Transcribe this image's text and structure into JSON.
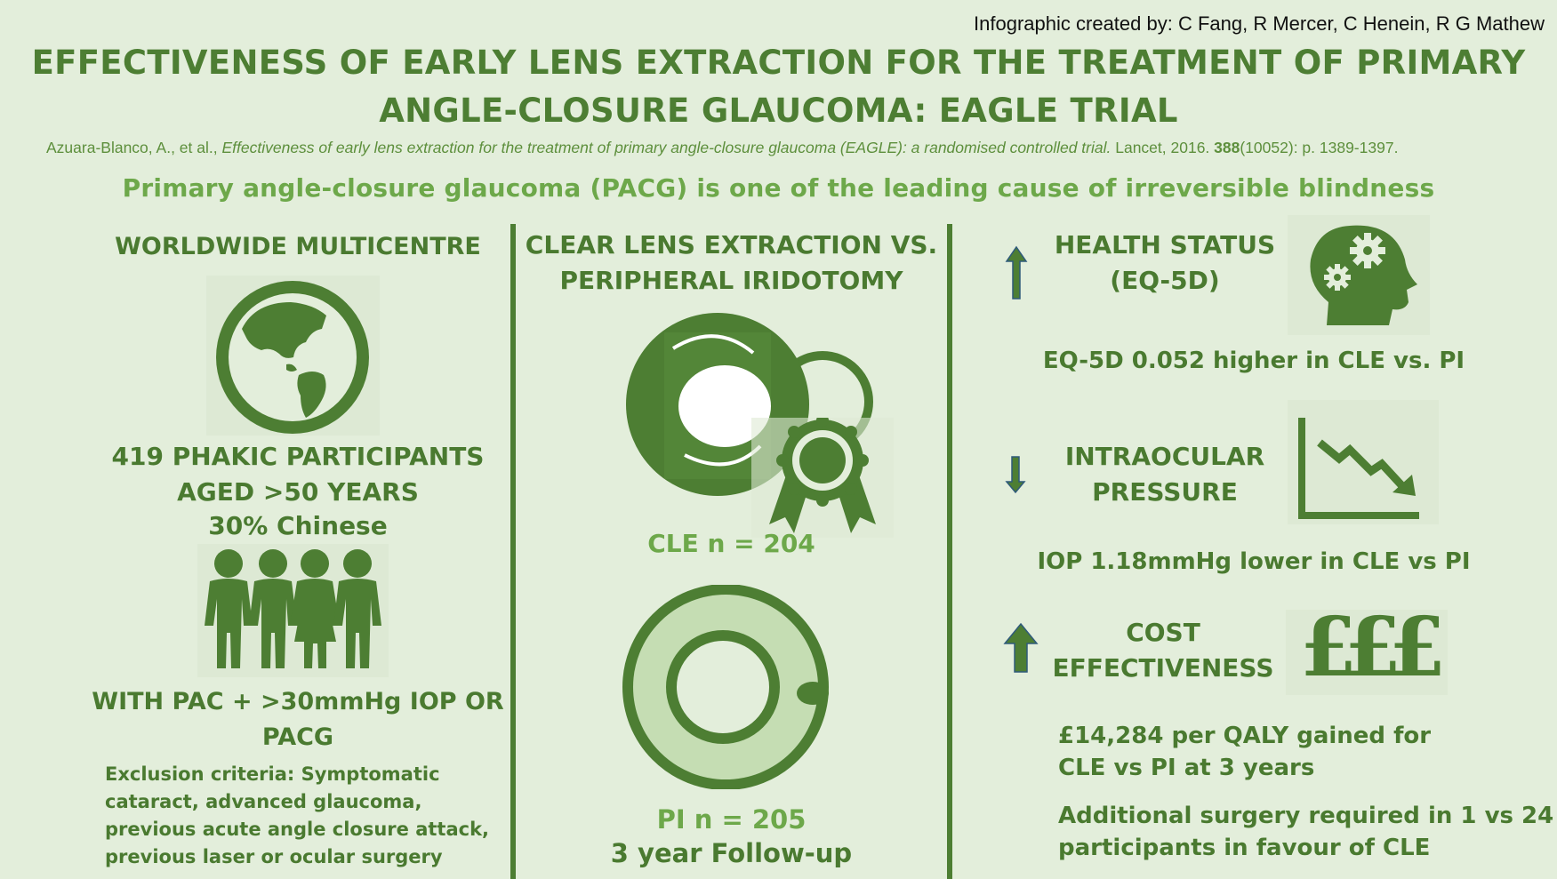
{
  "credit": "Infographic created by: C Fang, R Mercer, C Henein, R G Mathew",
  "title_line1": "EFFECTIVENESS OF EARLY LENS EXTRACTION FOR THE TREATMENT OF PRIMARY",
  "title_line2": "ANGLE-CLOSURE GLAUCOMA: EAGLE TRIAL",
  "citation": {
    "authors": "Azuara-Blanco, A., et al., ",
    "article": "Effectiveness of early lens extraction for the treatment of primary angle-closure glaucoma (EAGLE): a randomised controlled trial.",
    "journal": " Lancet, 2016. ",
    "volume": "388",
    "pages": "(10052): p. 1389-1397."
  },
  "subtitle": "Primary angle-closure glaucoma (PACG) is one of the leading cause of irreversible blindness",
  "left": {
    "heading": "WORLDWIDE MULTICENTRE",
    "icon_globe": "globe-icon",
    "participants_line1": "419 PHAKIC PARTICIPANTS",
    "participants_line2": "AGED >50 YEARS",
    "participants_line3": "30% Chinese",
    "icon_people": "people-icon",
    "criteria_line1": "WITH PAC + >30mmHg IOP OR",
    "criteria_line2": "PACG",
    "exclusion_line1": "Exclusion criteria: Symptomatic",
    "exclusion_line2": "cataract, advanced glaucoma,",
    "exclusion_line3": "previous acute angle closure attack,",
    "exclusion_line4": "previous laser or ocular surgery"
  },
  "middle": {
    "heading_line1": "CLEAR LENS EXTRACTION VS.",
    "heading_line2": "PERIPHERAL IRIDOTOMY",
    "icon_lens": "intraocular-lens-icon",
    "icon_award": "award-ribbon-icon",
    "cle_label": "CLE n = 204",
    "icon_pi": "iridotomy-eye-icon",
    "pi_label": "PI n = 205",
    "followup": "3 year Follow-up"
  },
  "right": {
    "health_heading_line1": "HEALTH STATUS",
    "health_heading_line2": "(EQ-5D)",
    "health_arrow": "up-arrow-icon",
    "health_icon": "head-gears-icon",
    "health_result": "EQ-5D 0.052 higher in CLE vs. PI",
    "iop_heading_line1": "INTRAOCULAR",
    "iop_heading_line2": "PRESSURE",
    "iop_arrow": "down-arrow-icon",
    "iop_icon": "declining-chart-icon",
    "iop_result": "IOP 1.18mmHg lower in CLE vs PI",
    "cost_heading_line1": "COST",
    "cost_heading_line2": "EFFECTIVENESS",
    "cost_arrow": "up-arrow-icon",
    "cost_icon": "£££",
    "cost_result_line1": "£14,284 per QALY gained for",
    "cost_result_line2": "CLE vs PI at 3 years",
    "surgery_line1": "Additional surgery required in 1 vs 24",
    "surgery_line2": "participants in favour of CLE"
  },
  "colors": {
    "background": "#e3eedb",
    "dark_green": "#4d7e33",
    "light_green": "#6da84a",
    "pale_green": "#c5ddb3"
  }
}
